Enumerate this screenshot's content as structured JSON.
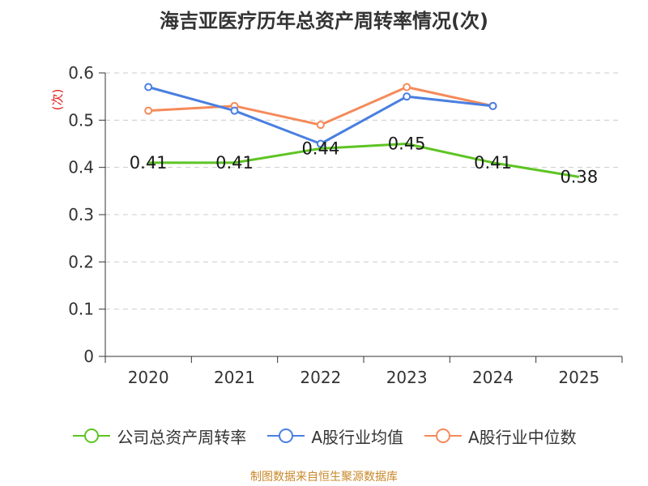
{
  "title": "海吉亚医疗历年总资产周转率情况(次)",
  "source": "制图数据来自恒生聚源数据库",
  "chart_data": {
    "type": "line",
    "title": "海吉亚医疗历年总资产周转率情况(次)",
    "ylabel": "(次)",
    "xlabel": "",
    "categories": [
      "2020",
      "2021",
      "2022",
      "2023",
      "2024",
      "2025"
    ],
    "ylim": [
      0,
      0.6
    ],
    "yticks": [
      "0",
      "0.1",
      "0.2",
      "0.3",
      "0.4",
      "0.5",
      "0.6"
    ],
    "grid": true,
    "legend_position": "bottom",
    "series": [
      {
        "name": "公司总资产周转率",
        "color": "#5ec424",
        "values": [
          0.41,
          0.41,
          0.44,
          0.45,
          0.41,
          0.38
        ],
        "labels": [
          "0.41",
          "0.41",
          "0.44",
          "0.45",
          "0.41",
          "0.38"
        ]
      },
      {
        "name": "A股行业均值",
        "color": "#4a7fe0",
        "values": [
          0.57,
          0.52,
          0.45,
          0.55,
          0.53,
          null
        ]
      },
      {
        "name": "A股行业中位数",
        "color": "#f58a5a",
        "values": [
          0.52,
          0.53,
          0.49,
          0.57,
          0.53,
          null
        ]
      }
    ]
  }
}
